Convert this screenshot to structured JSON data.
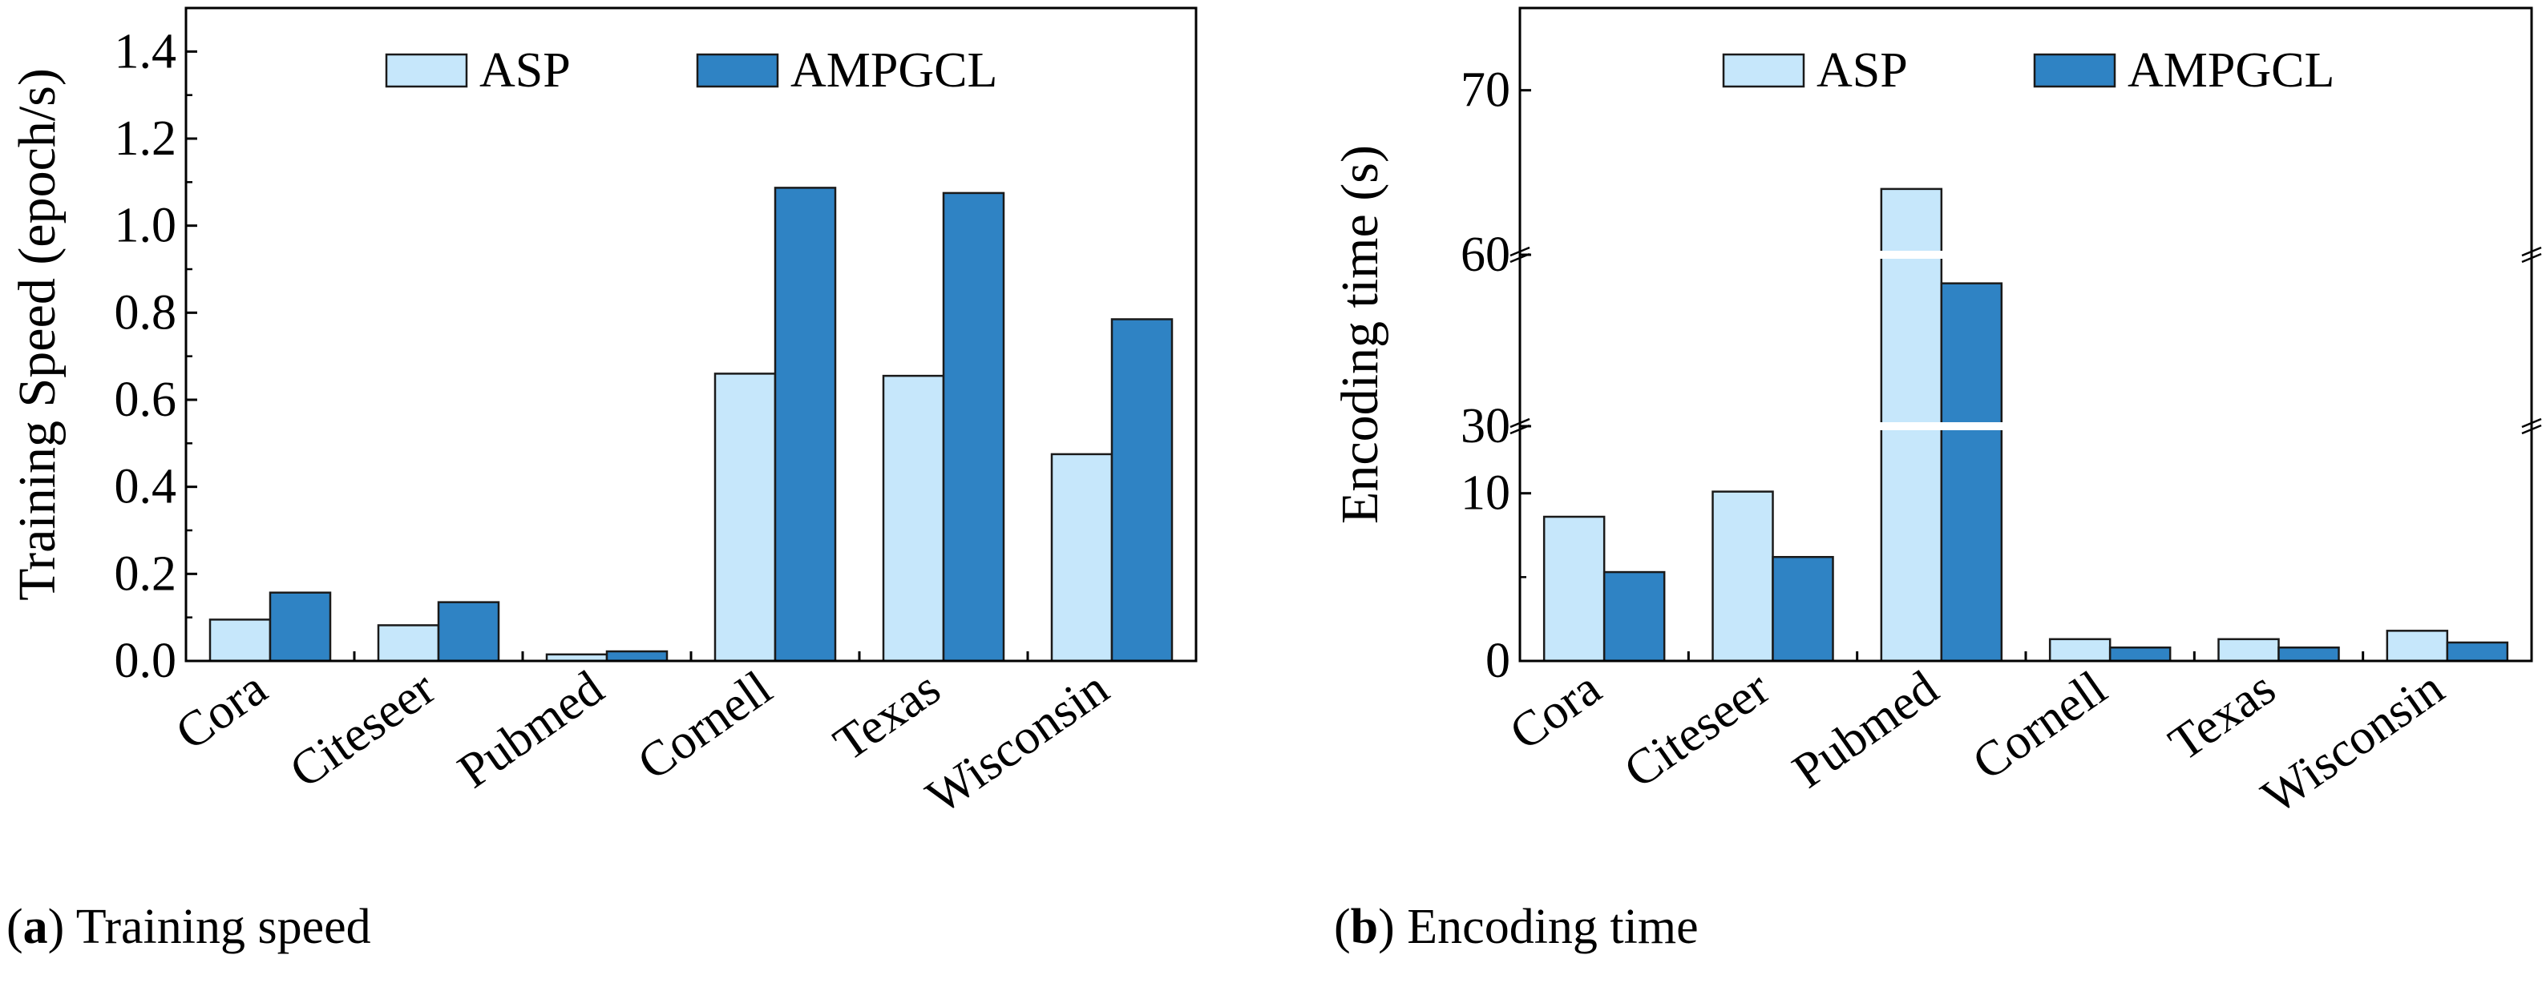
{
  "colors": {
    "asp_fill": "#c6e7fb",
    "ampgcl_fill": "#2f83c4",
    "bar_stroke": "#1a1a1a",
    "axis": "#000000"
  },
  "captions": {
    "a": {
      "label": "a",
      "text": "Training speed"
    },
    "b": {
      "label": "b",
      "text": "Encoding time"
    }
  },
  "chart_data": [
    {
      "type": "bar",
      "categories": [
        "Cora",
        "Citeseer",
        "Pubmed",
        "Cornell",
        "Texas",
        "Wisconsin"
      ],
      "series": [
        {
          "name": "ASP",
          "values": [
            0.095,
            0.082,
            0.015,
            0.66,
            0.655,
            0.475
          ]
        },
        {
          "name": "AMPGCL",
          "values": [
            0.157,
            0.135,
            0.022,
            1.087,
            1.075,
            0.785
          ]
        }
      ],
      "title": "",
      "xlabel": "",
      "ylabel": "Training Speed (epoch/s)",
      "ylim": [
        0,
        1.5
      ],
      "yticks": [
        "0.0",
        "0.2",
        "0.4",
        "0.6",
        "0.8",
        "1.0",
        "1.2",
        "1.4"
      ],
      "legend": "top-center",
      "grid": false
    },
    {
      "type": "bar",
      "categories": [
        "Cora",
        "Citeseer",
        "Pubmed",
        "Cornell",
        "Texas",
        "Wisconsin"
      ],
      "series": [
        {
          "name": "ASP",
          "values": [
            8.6,
            10.1,
            64.0,
            1.3,
            1.3,
            1.8
          ]
        },
        {
          "name": "AMPGCL",
          "values": [
            5.3,
            6.2,
            55.0,
            0.8,
            0.8,
            1.1
          ]
        }
      ],
      "title": "",
      "xlabel": "",
      "ylabel": "Encoding time (s)",
      "broken_axis_segments": [
        [
          0,
          14
        ],
        [
          30,
          60
        ],
        [
          60,
          75
        ]
      ],
      "yticks": [
        "0",
        "10",
        "30",
        "60",
        "70"
      ],
      "legend": "top-center",
      "grid": false
    }
  ]
}
